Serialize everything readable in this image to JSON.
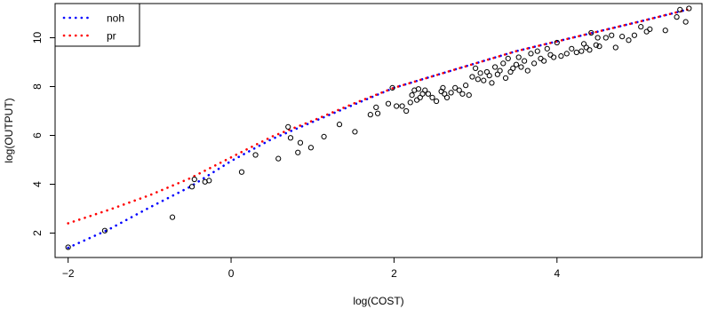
{
  "chart_data": {
    "type": "scatter",
    "xlabel": "log(COST)",
    "ylabel": "log(OUTPUT)",
    "xlim": [
      -2.16,
      5.78
    ],
    "ylim": [
      1.0,
      11.4
    ],
    "x_ticks": [
      -2,
      0,
      2,
      4
    ],
    "y_ticks": [
      2,
      4,
      6,
      8,
      10
    ],
    "grid": false,
    "legend": {
      "position": "top-left",
      "entries": [
        {
          "label": "noh",
          "color": "#0000ff",
          "style": "dotted"
        },
        {
          "label": "pr",
          "color": "#ff0000",
          "style": "dotted"
        }
      ]
    },
    "series": [
      {
        "name": "noh",
        "kind": "dotted-line",
        "color": "#0000ff",
        "x": [
          -2.0,
          -1.5,
          -1.0,
          -0.5,
          0.0,
          0.5,
          1.0,
          1.5,
          2.0,
          2.5,
          3.0,
          3.5,
          4.0,
          4.5,
          5.0,
          5.6
        ],
        "y": [
          1.4,
          2.15,
          3.05,
          3.9,
          4.95,
          5.85,
          6.55,
          7.25,
          7.95,
          8.45,
          8.95,
          9.45,
          9.85,
          10.25,
          10.65,
          11.15
        ]
      },
      {
        "name": "pr",
        "kind": "dotted-line",
        "color": "#ff0000",
        "x": [
          -2.0,
          -1.5,
          -1.0,
          -0.5,
          0.0,
          0.5,
          1.0,
          1.5,
          2.0,
          2.5,
          3.0,
          3.5,
          4.0,
          4.5,
          5.0,
          5.6
        ],
        "y": [
          2.4,
          2.95,
          3.55,
          4.25,
          5.1,
          5.95,
          6.6,
          7.3,
          7.95,
          8.45,
          8.95,
          9.45,
          9.85,
          10.25,
          10.65,
          11.15
        ]
      },
      {
        "name": "",
        "kind": "points",
        "color": "#000000",
        "x": [
          -2.0,
          -1.55,
          -0.72,
          -0.48,
          -0.45,
          -0.32,
          -0.27,
          0.13,
          0.3,
          0.58,
          0.7,
          0.73,
          0.82,
          0.85,
          0.98,
          1.14,
          1.33,
          1.52,
          1.71,
          1.78,
          1.8,
          1.93,
          1.98,
          2.03,
          2.1,
          2.15,
          2.2,
          2.22,
          2.25,
          2.28,
          2.3,
          2.32,
          2.35,
          2.38,
          2.42,
          2.47,
          2.52,
          2.58,
          2.6,
          2.62,
          2.65,
          2.7,
          2.75,
          2.8,
          2.84,
          2.88,
          2.92,
          2.96,
          3.0,
          3.03,
          3.06,
          3.1,
          3.14,
          3.17,
          3.2,
          3.24,
          3.27,
          3.3,
          3.34,
          3.37,
          3.4,
          3.43,
          3.46,
          3.5,
          3.53,
          3.56,
          3.6,
          3.64,
          3.68,
          3.72,
          3.76,
          3.8,
          3.84,
          3.88,
          3.92,
          3.96,
          4.0,
          4.05,
          4.12,
          4.18,
          4.24,
          4.3,
          4.33,
          4.36,
          4.4,
          4.42,
          4.48,
          4.5,
          4.52,
          4.6,
          4.67,
          4.72,
          4.8,
          4.88,
          4.95,
          5.03,
          5.1,
          5.14,
          5.33,
          5.47,
          5.51,
          5.58,
          5.62
        ],
        "y": [
          1.42,
          2.1,
          2.65,
          3.9,
          4.2,
          4.1,
          4.15,
          4.5,
          5.2,
          5.05,
          6.35,
          5.9,
          5.3,
          5.7,
          5.5,
          5.95,
          6.45,
          6.15,
          6.85,
          7.15,
          6.9,
          7.3,
          7.95,
          7.2,
          7.2,
          7.0,
          7.35,
          7.65,
          7.85,
          7.45,
          7.9,
          7.55,
          7.7,
          7.85,
          7.7,
          7.55,
          7.4,
          7.8,
          7.95,
          7.7,
          7.55,
          7.75,
          7.95,
          7.85,
          7.7,
          8.05,
          7.65,
          8.4,
          8.75,
          8.3,
          8.55,
          8.25,
          8.6,
          8.45,
          8.15,
          8.8,
          8.5,
          8.65,
          8.95,
          8.35,
          9.15,
          8.6,
          8.75,
          8.9,
          9.2,
          8.8,
          9.05,
          8.65,
          9.35,
          8.95,
          9.45,
          9.15,
          9.05,
          9.55,
          9.3,
          9.2,
          9.8,
          9.25,
          9.35,
          9.55,
          9.4,
          9.45,
          9.75,
          9.6,
          9.5,
          10.2,
          9.7,
          10.0,
          9.65,
          10.0,
          10.1,
          9.6,
          10.05,
          9.9,
          10.1,
          10.45,
          10.25,
          10.35,
          10.3,
          10.85,
          11.15,
          10.65,
          11.2
        ]
      }
    ]
  }
}
